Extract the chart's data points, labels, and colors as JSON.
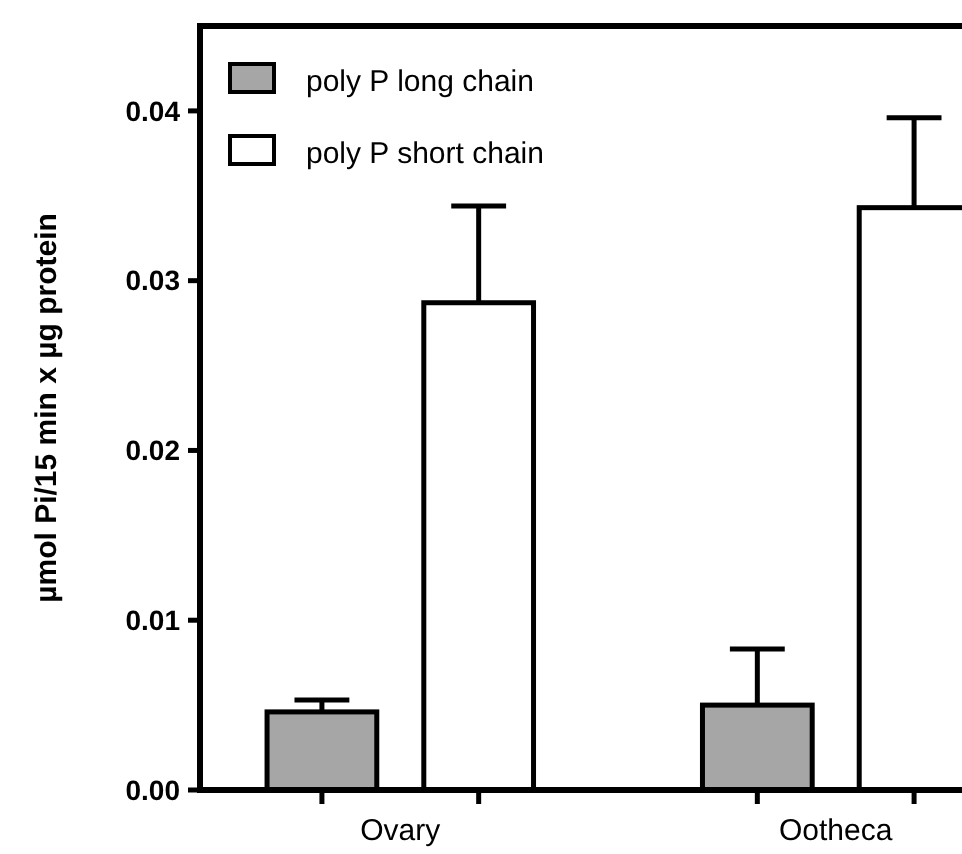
{
  "chart_data": {
    "type": "bar",
    "ylabel": "µmol Pi/15 min x µg protein",
    "categories": [
      "Ovary",
      "Ootheca"
    ],
    "series": [
      {
        "name": "poly P long chain",
        "color": "#a6a6a6",
        "values": [
          0.0046,
          0.005
        ],
        "errors": [
          [
            0.0046,
            0.0053
          ],
          [
            0.005,
            0.0083
          ]
        ]
      },
      {
        "name": "poly P short chain",
        "color": "#ffffff",
        "values": [
          0.0287,
          0.0343
        ],
        "errors": [
          [
            0.0287,
            0.0344
          ],
          [
            0.0343,
            0.0396
          ]
        ]
      }
    ],
    "ylim": [
      0,
      0.045
    ],
    "yticks": [
      {
        "value": 0,
        "label": "0.00"
      },
      0.01,
      0.02,
      0.03,
      0.04
    ],
    "legend": "top left",
    "grid": false
  }
}
